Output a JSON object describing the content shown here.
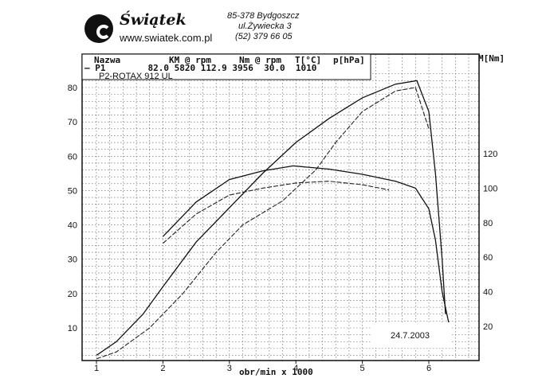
{
  "header": {
    "logo_name": "Świątek",
    "logo_url": "www.swiatek.com.pl",
    "address_line1": "85-378 Bydgoszcz",
    "address_line2": "ul.Żywiecka 3",
    "address_line3": "(52) 379 66 05"
  },
  "legend": {
    "col_name": "Nazwa",
    "col_power": "KM @ rpm",
    "col_torque": "Nm @ rpm",
    "col_temp": "T[°C]",
    "col_pressure": "p[hPa]",
    "row1": "— P1        82.0 5820 112.9 3956  30.0  1010",
    "row2": "P2-ROTAX 912 UL"
  },
  "date_label": "24.7.2003",
  "chart_data": {
    "type": "line",
    "xlabel": "obr/min x 1000",
    "ylabel_left": "",
    "ylabel_right": "M[Nm]",
    "xlim": [
      1,
      6.8
    ],
    "ylim_left": [
      0,
      85
    ],
    "ylim_right": [
      20,
      145
    ],
    "x_ticks": [
      "1",
      "2",
      "3",
      "4",
      "5",
      "6"
    ],
    "y_ticks_left": [
      "10",
      "20",
      "30",
      "40",
      "50",
      "60",
      "70",
      "80"
    ],
    "y_ticks_right": [
      "20",
      "40",
      "60",
      "80",
      "100",
      "120"
    ],
    "grid": true,
    "series": [
      {
        "name": "P1",
        "axis": "left",
        "role": "power",
        "points": [
          [
            1.0,
            2
          ],
          [
            1.3,
            6
          ],
          [
            1.7,
            14
          ],
          [
            2.0,
            22
          ],
          [
            2.5,
            35
          ],
          [
            3.0,
            45
          ],
          [
            3.5,
            55
          ],
          [
            4.0,
            64
          ],
          [
            4.5,
            71
          ],
          [
            5.0,
            77
          ],
          [
            5.5,
            81
          ],
          [
            5.82,
            82
          ],
          [
            6.0,
            73
          ],
          [
            6.1,
            55
          ],
          [
            6.2,
            30
          ],
          [
            6.25,
            14
          ]
        ]
      },
      {
        "name": "P2-ROTAX 912 UL",
        "axis": "left",
        "role": "power",
        "points": [
          [
            1.0,
            1
          ],
          [
            1.3,
            3
          ],
          [
            1.8,
            10
          ],
          [
            2.3,
            20
          ],
          [
            2.8,
            32
          ],
          [
            3.2,
            40
          ],
          [
            3.8,
            47
          ],
          [
            4.3,
            56
          ],
          [
            4.6,
            64
          ],
          [
            5.0,
            73
          ],
          [
            5.5,
            79
          ],
          [
            5.8,
            80
          ],
          [
            6.0,
            68
          ]
        ]
      },
      {
        "name": "P1",
        "axis": "right",
        "role": "torque",
        "points": [
          [
            2.0,
            72
          ],
          [
            2.5,
            92
          ],
          [
            3.0,
            105
          ],
          [
            3.5,
            110
          ],
          [
            3.96,
            112.9
          ],
          [
            4.5,
            111
          ],
          [
            5.0,
            108
          ],
          [
            5.5,
            104
          ],
          [
            5.8,
            100
          ],
          [
            6.0,
            88
          ],
          [
            6.1,
            70
          ],
          [
            6.2,
            40
          ],
          [
            6.3,
            22
          ]
        ]
      },
      {
        "name": "P2-ROTAX 912 UL",
        "axis": "right",
        "role": "torque",
        "points": [
          [
            2.0,
            68
          ],
          [
            2.5,
            85
          ],
          [
            3.0,
            96
          ],
          [
            3.5,
            100
          ],
          [
            4.0,
            103
          ],
          [
            4.5,
            104
          ],
          [
            5.0,
            102
          ],
          [
            5.4,
            99
          ]
        ]
      }
    ]
  }
}
